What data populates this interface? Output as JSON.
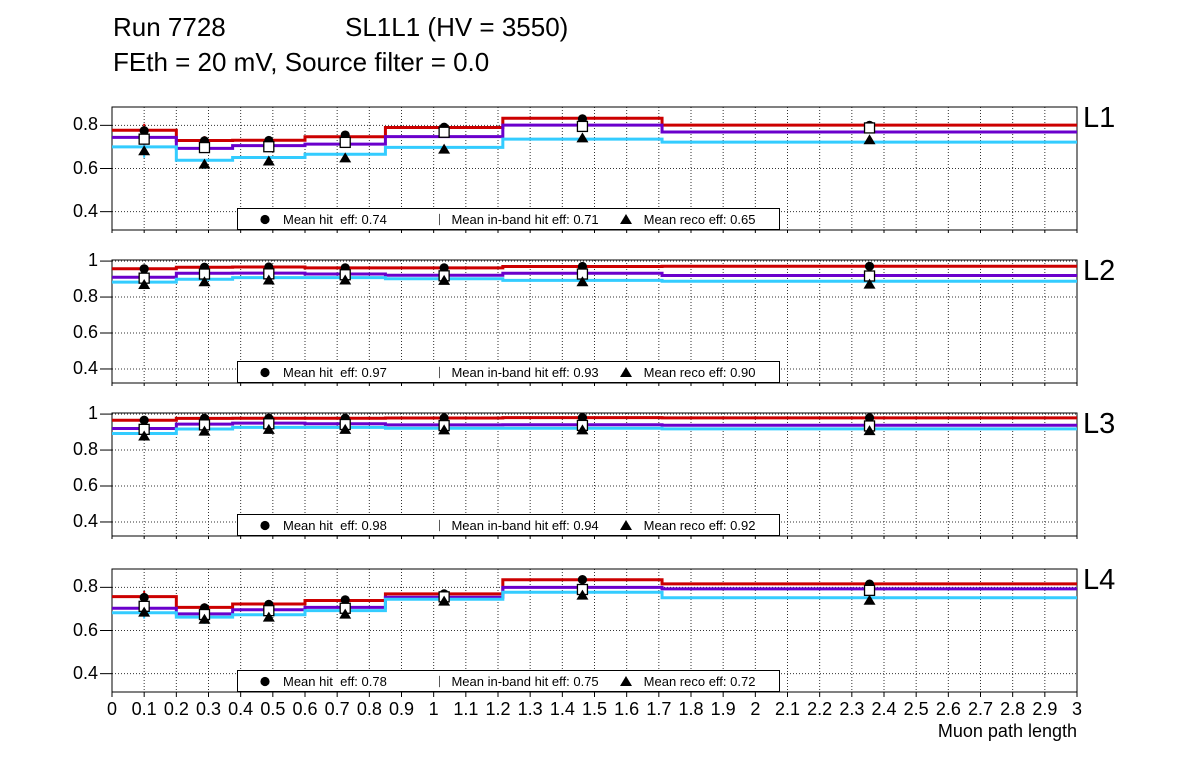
{
  "title": {
    "run": "Run 7728",
    "chamber": "SL1L1 (HV = 3550)",
    "conditions": "FEth = 20 mV, Source filter = 0.0"
  },
  "chart_data": {
    "type": "line",
    "subtype": "step-histogram-with-error-markers",
    "x_label": "Muon path length",
    "x_range": [
      0,
      3
    ],
    "x_tick_step": 0.1,
    "x_tick_labels": [
      "0",
      "0.1",
      "0.2",
      "0.3",
      "0.4",
      "0.5",
      "0.6",
      "0.7",
      "0.8",
      "0.9",
      "1",
      "1.1",
      "1.2",
      "1.3",
      "1.4",
      "1.5",
      "1.6",
      "1.7",
      "1.8",
      "1.9",
      "2",
      "2.1",
      "2.2",
      "2.3",
      "2.4",
      "2.5",
      "2.6",
      "2.7",
      "2.8",
      "2.9",
      "3"
    ],
    "grid": "dotted",
    "bin_edges": [
      0,
      0.2,
      0.375,
      0.6,
      0.85,
      1.215,
      1.71,
      3.0
    ],
    "series_meta": [
      {
        "id": "hit",
        "name": "Mean hit eff",
        "color": "#cc0000",
        "marker": "filled-circle-icon"
      },
      {
        "id": "inband",
        "name": "Mean in-band hit eff",
        "color": "#6a00cc",
        "marker": "open-square-icon"
      },
      {
        "id": "reco",
        "name": "Mean reco eff",
        "color": "#33ccff",
        "marker": "filled-triangle-icon"
      }
    ],
    "panels": [
      {
        "label": "L1",
        "y_range": [
          0.315,
          0.885
        ],
        "y_ticks": [
          0.8,
          0.6,
          0.4
        ],
        "y_tick_labels": [
          "0.8",
          "0.6",
          "0.4"
        ],
        "series": {
          "hit": {
            "line": [
              0.777,
              0.73,
              0.731,
              0.747,
              0.79,
              0.833,
              0.801
            ],
            "markers": [
              0.775,
              0.728,
              0.73,
              0.755,
              0.791,
              0.83,
              0.8
            ]
          },
          "inband": {
            "line": [
              0.744,
              0.693,
              0.706,
              0.713,
              0.748,
              0.801,
              0.769
            ],
            "markers": [
              0.736,
              0.697,
              0.701,
              0.721,
              0.768,
              0.795,
              0.788
            ]
          },
          "reco": {
            "line": [
              0.7,
              0.638,
              0.651,
              0.666,
              0.698,
              0.736,
              0.722
            ],
            "markers": [
              0.682,
              0.62,
              0.635,
              0.649,
              0.69,
              0.742,
              0.733
            ]
          }
        },
        "errors": [
          0.032,
          0.022,
          0.018,
          0.014,
          0.011,
          0.009,
          0.007
        ],
        "legend": [
          {
            "marker": "filled-circle-icon",
            "label": "Mean hit  eff: 0.74"
          },
          {
            "marker": "open-square-icon",
            "label": "Mean in-band hit eff: 0.71"
          },
          {
            "marker": "filled-triangle-icon",
            "label": "Mean reco eff: 0.65"
          }
        ]
      },
      {
        "label": "L2",
        "y_range": [
          0.322,
          1.006
        ],
        "y_ticks": [
          1,
          0.8,
          0.6,
          0.4
        ],
        "y_tick_labels": [
          "1",
          "0.8",
          "0.6",
          "0.4"
        ],
        "series": {
          "hit": {
            "line": [
              0.957,
              0.966,
              0.967,
              0.962,
              0.962,
              0.97,
              0.971
            ],
            "markers": [
              0.957,
              0.966,
              0.967,
              0.962,
              0.962,
              0.97,
              0.971
            ]
          },
          "inband": {
            "line": [
              0.91,
              0.932,
              0.933,
              0.928,
              0.921,
              0.932,
              0.92
            ],
            "markers": [
              0.905,
              0.928,
              0.929,
              0.924,
              0.918,
              0.928,
              0.917
            ]
          },
          "reco": {
            "line": [
              0.883,
              0.899,
              0.908,
              0.908,
              0.902,
              0.893,
              0.888
            ],
            "markers": [
              0.87,
              0.885,
              0.895,
              0.895,
              0.893,
              0.885,
              0.872
            ]
          }
        },
        "errors": [
          0.018,
          0.013,
          0.01,
          0.008,
          0.006,
          0.005,
          0.004
        ],
        "legend": [
          {
            "marker": "filled-circle-icon",
            "label": "Mean hit  eff: 0.97"
          },
          {
            "marker": "open-square-icon",
            "label": "Mean in-band hit eff: 0.93"
          },
          {
            "marker": "filled-triangle-icon",
            "label": "Mean reco eff: 0.90"
          }
        ]
      },
      {
        "label": "L3",
        "y_range": [
          0.322,
          1.006
        ],
        "y_ticks": [
          1,
          0.8,
          0.6,
          0.4
        ],
        "y_tick_labels": [
          "1",
          "0.8",
          "0.6",
          "0.4"
        ],
        "series": {
          "hit": {
            "line": [
              0.966,
              0.976,
              0.977,
              0.977,
              0.978,
              0.98,
              0.979
            ],
            "markers": [
              0.966,
              0.976,
              0.977,
              0.977,
              0.978,
              0.98,
              0.979
            ]
          },
          "inband": {
            "line": [
              0.92,
              0.944,
              0.95,
              0.946,
              0.94,
              0.941,
              0.938
            ],
            "markers": [
              0.915,
              0.94,
              0.946,
              0.942,
              0.936,
              0.937,
              0.934
            ]
          },
          "reco": {
            "line": [
              0.892,
              0.917,
              0.926,
              0.926,
              0.921,
              0.921,
              0.918
            ],
            "markers": [
              0.878,
              0.905,
              0.915,
              0.915,
              0.912,
              0.912,
              0.908
            ]
          }
        },
        "errors": [
          0.015,
          0.01,
          0.008,
          0.007,
          0.005,
          0.004,
          0.004
        ],
        "legend": [
          {
            "marker": "filled-circle-icon",
            "label": "Mean hit  eff: 0.98"
          },
          {
            "marker": "open-square-icon",
            "label": "Mean in-band hit eff: 0.94"
          },
          {
            "marker": "filled-triangle-icon",
            "label": "Mean reco eff: 0.92"
          }
        ]
      },
      {
        "label": "L4",
        "y_range": [
          0.315,
          0.885
        ],
        "y_ticks": [
          0.8,
          0.6,
          0.4
        ],
        "y_tick_labels": [
          "0.8",
          "0.6",
          "0.4"
        ],
        "series": {
          "hit": {
            "line": [
              0.757,
              0.707,
              0.723,
              0.739,
              0.77,
              0.835,
              0.816
            ],
            "markers": [
              0.753,
              0.705,
              0.721,
              0.742,
              0.77,
              0.836,
              0.815
            ]
          },
          "inband": {
            "line": [
              0.703,
              0.677,
              0.696,
              0.707,
              0.754,
              0.8,
              0.793
            ],
            "markers": [
              0.712,
              0.674,
              0.692,
              0.703,
              0.756,
              0.79,
              0.786
            ]
          },
          "reco": {
            "line": [
              0.682,
              0.662,
              0.673,
              0.692,
              0.745,
              0.777,
              0.752
            ],
            "markers": [
              0.685,
              0.652,
              0.662,
              0.676,
              0.736,
              0.764,
              0.74
            ]
          }
        },
        "errors": [
          0.03,
          0.021,
          0.017,
          0.013,
          0.01,
          0.008,
          0.006
        ],
        "legend": [
          {
            "marker": "filled-circle-icon",
            "label": "Mean hit  eff: 0.78"
          },
          {
            "marker": "open-square-icon",
            "label": "Mean in-band hit eff: 0.75"
          },
          {
            "marker": "filled-triangle-icon",
            "label": "Mean reco eff: 0.72"
          }
        ]
      }
    ]
  }
}
